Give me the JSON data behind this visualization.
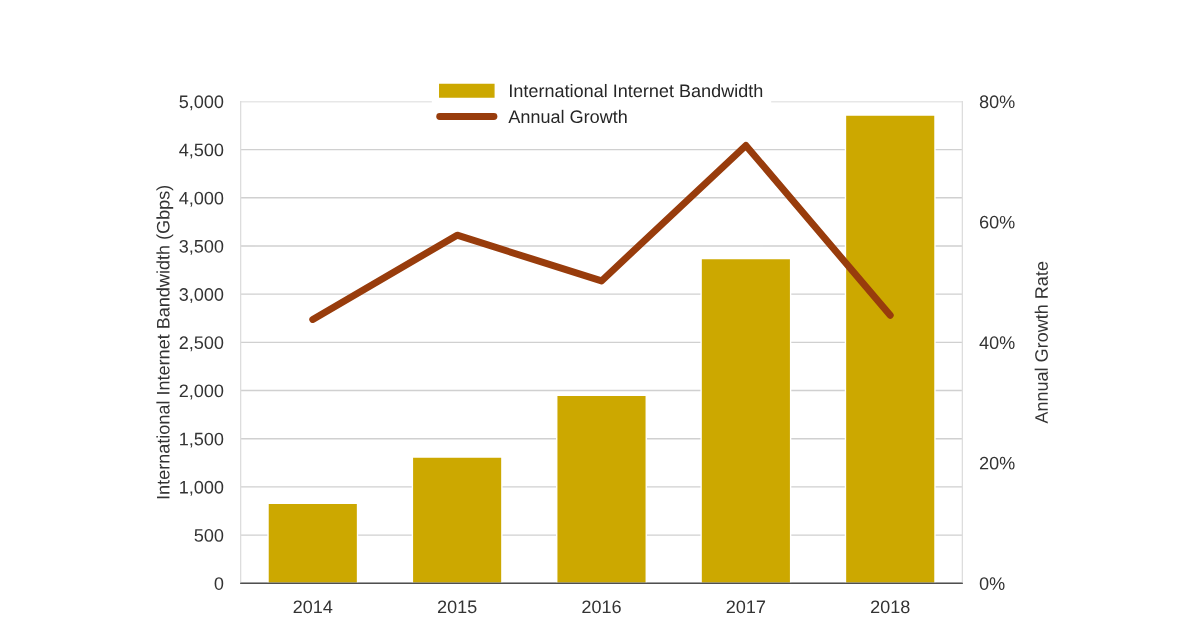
{
  "chart_data": {
    "type": "bar",
    "categories": [
      "2014",
      "2015",
      "2016",
      "2017",
      "2018"
    ],
    "ylabel": "International Internet Bandwidth (Gbps)",
    "y2label": "Annual Growth Rate",
    "series": [
      {
        "name": "International Internet Bandwidth",
        "color": "#cca800",
        "values": [
          830,
          1310,
          1950,
          3370,
          4860
        ]
      },
      {
        "name": "Annual Growth",
        "color": "#983c0c",
        "type": "line",
        "axis": "y2",
        "values": [
          43.8,
          57.8,
          50.2,
          72.7,
          44.5
        ]
      }
    ],
    "ylim": [
      0,
      5000
    ],
    "yticks": [
      {
        "value": 0,
        "label": "0"
      },
      {
        "value": 500,
        "label": "500"
      },
      {
        "value": 1000,
        "label": "1,000"
      },
      {
        "value": 1500,
        "label": "1,500"
      },
      {
        "value": 2000,
        "label": "2,000"
      },
      {
        "value": 2500,
        "label": "2,500"
      },
      {
        "value": 3000,
        "label": "3,000"
      },
      {
        "value": 3500,
        "label": "3,500"
      },
      {
        "value": 4000,
        "label": "4,000"
      },
      {
        "value": 4500,
        "label": "4,500"
      },
      {
        "value": 5000,
        "label": "5,000"
      }
    ],
    "y2lim": [
      0,
      80
    ],
    "y2ticks": [
      {
        "value": 0,
        "label": "0%"
      },
      {
        "value": 20,
        "label": "20%"
      },
      {
        "value": 40,
        "label": "40%"
      },
      {
        "value": 60,
        "label": "60%"
      },
      {
        "value": 80,
        "label": "80%"
      }
    ],
    "grid": "y",
    "legend": "top"
  }
}
